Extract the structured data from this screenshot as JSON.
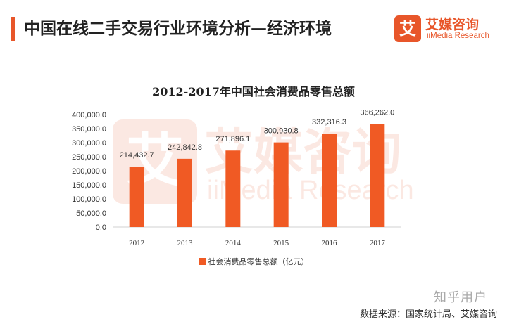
{
  "header": {
    "title": "中国在线二手交易行业环境分析—经济环境"
  },
  "logo": {
    "glyph": "艾",
    "cn": "艾媒咨询",
    "en": "iiMedia Research"
  },
  "watermark": {
    "glyph": "艾",
    "cn": "艾媒咨询",
    "en": "iiMedia Research"
  },
  "chart_data": {
    "type": "bar",
    "title": "2012-2017年中国社会消费品零售总额",
    "categories": [
      "2012",
      "2013",
      "2014",
      "2015",
      "2016",
      "2017"
    ],
    "series": [
      {
        "name": "社会消费品零售总额（亿元）",
        "values": [
          214432.7,
          242842.8,
          271896.1,
          300930.8,
          332316.3,
          366262.0
        ],
        "labels": [
          "214,432.7",
          "242,842.8",
          "271,896.1",
          "300,930.8",
          "332,316.3",
          "366,262.0"
        ],
        "color": "#f05a24"
      }
    ],
    "yticks": [
      "0.0",
      "50,000.0",
      "100,000.0",
      "150,000.0",
      "200,000.0",
      "250,000.0",
      "300,000.0",
      "350,000.0",
      "400,000.0"
    ],
    "ylim": [
      0,
      400000
    ],
    "grid": false,
    "legend": "bottom"
  },
  "footer": {
    "source": "数据来源：国家统计局、艾媒咨询",
    "credit": "知乎用户"
  }
}
